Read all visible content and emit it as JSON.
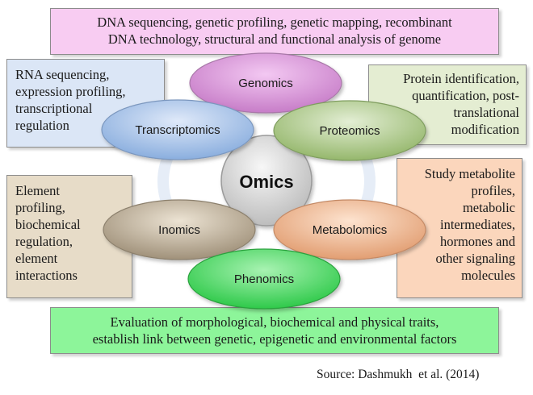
{
  "center": {
    "label": "Omics",
    "color": "#d9d9d9"
  },
  "nodes": [
    {
      "key": "genomics",
      "label": "Genomics",
      "color": "#d98fd8",
      "description": [
        "DNA sequencing, genetic profiling, genetic mapping, recombinant",
        "DNA technology, structural and functional analysis of genome"
      ]
    },
    {
      "key": "transcriptomics",
      "label": "Transcriptomics",
      "color": "#9fbde6",
      "description": [
        "RNA sequencing,",
        "expression profiling,",
        "transcriptional",
        "regulation"
      ]
    },
    {
      "key": "proteomics",
      "label": "Proteomics",
      "color": "#a9c783",
      "description": [
        "Protein identification,",
        "quantification, post-",
        "translational",
        "modification"
      ]
    },
    {
      "key": "inomics",
      "label": "Inomics",
      "color": "#b3a68f",
      "description": [
        "Element",
        "profiling,",
        "biochemical",
        "regulation,",
        "element",
        "interactions"
      ]
    },
    {
      "key": "metabolomics",
      "label": "Metabolomics",
      "color": "#efb48e",
      "description": [
        "Study metabolite",
        "profiles,",
        "metabolic",
        "intermediates,",
        "hormones and",
        "other signaling",
        "molecules"
      ]
    },
    {
      "key": "phenomics",
      "label": "Phenomics",
      "color": "#41d65b",
      "description": [
        "Evaluation of morphological, biochemical and physical traits,",
        "establish link between genetic, epigenetic and environmental factors"
      ]
    }
  ],
  "source": "Source: Dashmukh  et al. (2014)"
}
